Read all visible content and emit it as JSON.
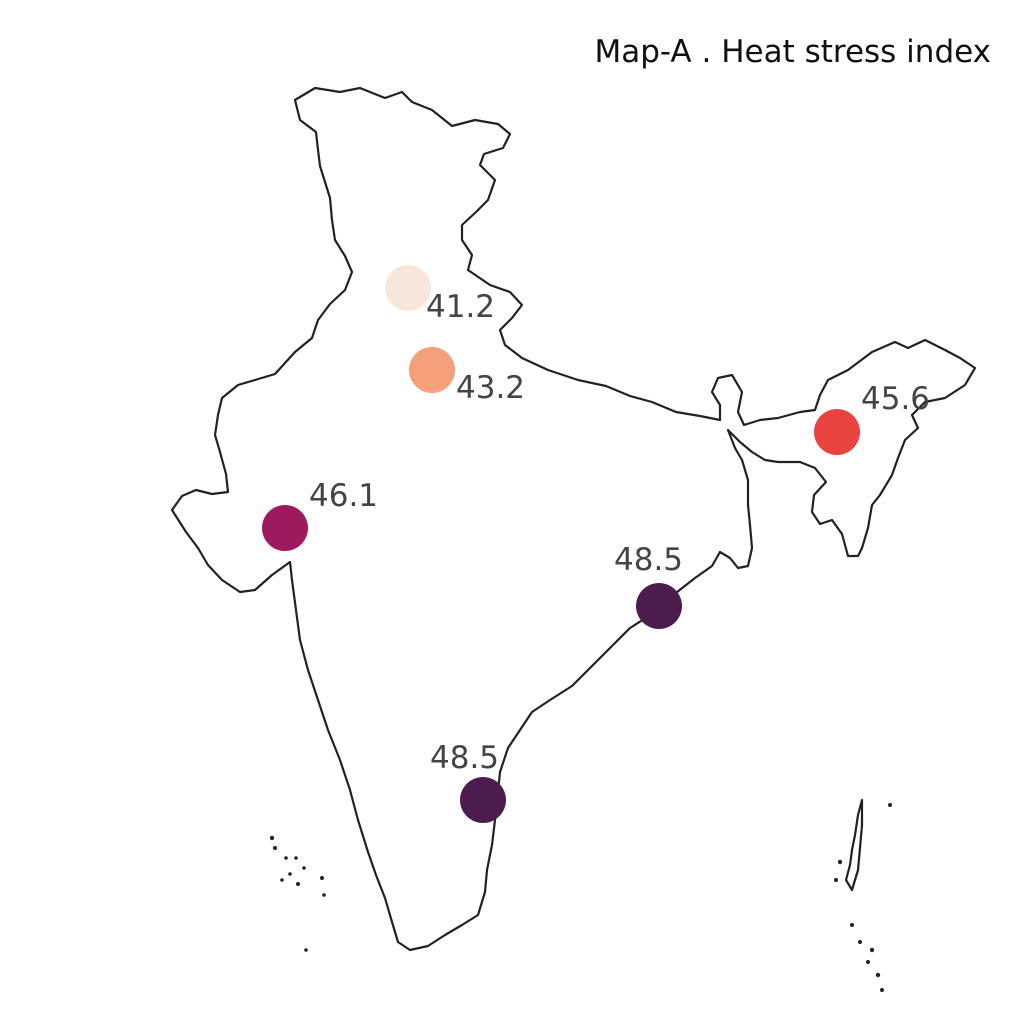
{
  "map": {
    "title": "Map-A . Heat stress index",
    "region": "India",
    "markers": [
      {
        "value": "41.2",
        "color": "#f7e6da"
      },
      {
        "value": "43.2",
        "color": "#f5a07a"
      },
      {
        "value": "45.6",
        "color": "#e8433e"
      },
      {
        "value": "46.1",
        "color": "#9e1a5e"
      },
      {
        "value": "48.5",
        "color": "#4b1c4d"
      },
      {
        "value": "48.5",
        "color": "#4b1c4d"
      }
    ]
  }
}
